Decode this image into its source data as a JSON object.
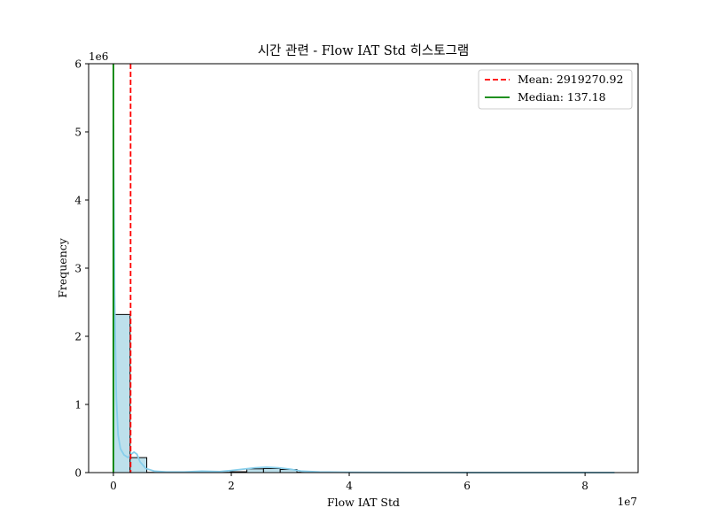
{
  "chart_data": {
    "type": "histogram",
    "title": "시간 관련 - Flow IAT Std 히스토그램",
    "xlabel": "Flow IAT Std",
    "ylabel": "Frequency",
    "x_scale_label": "1e7",
    "y_scale_label": "1e6",
    "xlim": [
      -0.42,
      8.9
    ],
    "ylim": [
      0,
      6
    ],
    "x_unit_multiplier": 10000000,
    "y_unit_multiplier": 1000000,
    "xticks": [
      0,
      2,
      4,
      6,
      8
    ],
    "xtick_labels": [
      "0",
      "2",
      "4",
      "6",
      "8"
    ],
    "yticks": [
      0,
      1,
      2,
      3,
      4,
      5,
      6
    ],
    "ytick_labels": [
      "0",
      "1",
      "2",
      "3",
      "4",
      "5",
      "6"
    ],
    "bin_width": 0.283,
    "bins": [
      {
        "x0": 0.0,
        "count": 2.32
      },
      {
        "x0": 0.283,
        "count": 0.22
      },
      {
        "x0": 0.566,
        "count": 0.003
      },
      {
        "x0": 0.849,
        "count": 0.002
      },
      {
        "x0": 1.132,
        "count": 0.006
      },
      {
        "x0": 1.415,
        "count": 0.007
      },
      {
        "x0": 1.698,
        "count": 0.004
      },
      {
        "x0": 1.981,
        "count": 0.012
      },
      {
        "x0": 2.264,
        "count": 0.055
      },
      {
        "x0": 2.547,
        "count": 0.06
      },
      {
        "x0": 2.83,
        "count": 0.045
      },
      {
        "x0": 3.113,
        "count": 0.005
      },
      {
        "x0": 3.396,
        "count": 0.003
      },
      {
        "x0": 3.679,
        "count": 0.002
      },
      {
        "x0": 3.962,
        "count": 0.002
      },
      {
        "x0": 4.245,
        "count": 0.001
      },
      {
        "x0": 4.528,
        "count": 0.001
      },
      {
        "x0": 4.811,
        "count": 0.001
      },
      {
        "x0": 5.094,
        "count": 0.001
      },
      {
        "x0": 5.377,
        "count": 0.001
      },
      {
        "x0": 5.66,
        "count": 0.001
      },
      {
        "x0": 5.943,
        "count": 0.001
      },
      {
        "x0": 6.226,
        "count": 0.001
      },
      {
        "x0": 6.509,
        "count": 0.001
      },
      {
        "x0": 6.792,
        "count": 0.001
      },
      {
        "x0": 7.075,
        "count": 0.001
      },
      {
        "x0": 7.358,
        "count": 0.001
      },
      {
        "x0": 7.641,
        "count": 0.001
      },
      {
        "x0": 7.924,
        "count": 0.001
      },
      {
        "x0": 8.207,
        "count": 0.001
      }
    ],
    "kde": {
      "x": [
        0,
        0.02,
        0.05,
        0.08,
        0.12,
        0.18,
        0.25,
        0.3,
        0.35,
        0.4,
        0.45,
        0.55,
        0.7,
        0.9,
        1.2,
        1.5,
        1.8,
        2.0,
        2.2,
        2.4,
        2.6,
        2.8,
        3.0,
        3.2,
        3.5,
        4.0,
        5.0,
        6.0,
        7.0,
        8.0,
        8.5
      ],
      "y": [
        5.1,
        2.6,
        1.1,
        0.55,
        0.35,
        0.26,
        0.22,
        0.27,
        0.3,
        0.27,
        0.16,
        0.06,
        0.02,
        0.01,
        0.01,
        0.02,
        0.015,
        0.03,
        0.05,
        0.07,
        0.08,
        0.07,
        0.05,
        0.02,
        0.01,
        0.004,
        0.002,
        0.001,
        0.001,
        0.001,
        0.001
      ]
    },
    "bar_fill": "#add8e6",
    "bar_stroke": "#000000",
    "kde_color": "#87ceeb",
    "mean": {
      "value": 0.291927092,
      "label": "Mean: 2919270.92",
      "color": "#ff0000",
      "style": "dashed"
    },
    "median": {
      "value": 1.37e-05,
      "label": "Median: 137.18",
      "color": "#008000",
      "style": "solid"
    },
    "legend_position": "top-right"
  }
}
